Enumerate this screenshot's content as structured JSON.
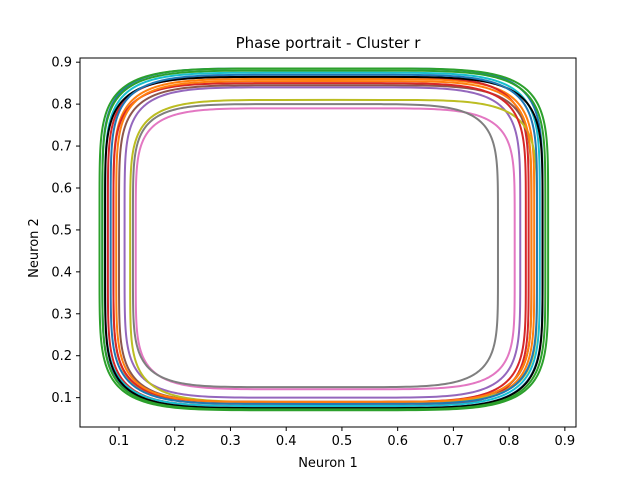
{
  "chart_data": {
    "type": "line",
    "title": "Phase portrait - Cluster r",
    "xlabel": "Neuron 1",
    "ylabel": "Neuron 2",
    "xlim": [
      0.03,
      0.92
    ],
    "ylim": [
      0.03,
      0.91
    ],
    "xticks": [
      "0.1",
      "0.2",
      "0.3",
      "0.4",
      "0.5",
      "0.6",
      "0.7",
      "0.8",
      "0.9"
    ],
    "yticks": [
      "0.1",
      "0.2",
      "0.3",
      "0.4",
      "0.5",
      "0.6",
      "0.7",
      "0.8",
      "0.9"
    ],
    "grid": false,
    "legend": "none",
    "series": [
      {
        "color": "#1f77b4",
        "x_range": [
          0.07,
          0.86
        ],
        "y_range": [
          0.075,
          0.885
        ]
      },
      {
        "color": "#ff7f0e",
        "x_range": [
          0.09,
          0.845
        ],
        "y_range": [
          0.085,
          0.86
        ]
      },
      {
        "color": "#2ca02c",
        "x_range": [
          0.065,
          0.87
        ],
        "y_range": [
          0.07,
          0.885
        ]
      },
      {
        "color": "#d62728",
        "x_range": [
          0.08,
          0.835
        ],
        "y_range": [
          0.08,
          0.865
        ]
      },
      {
        "color": "#9467bd",
        "x_range": [
          0.11,
          0.82
        ],
        "y_range": [
          0.1,
          0.84
        ]
      },
      {
        "color": "#8c564b",
        "x_range": [
          0.1,
          0.84
        ],
        "y_range": [
          0.09,
          0.845
        ]
      },
      {
        "color": "#e377c2",
        "x_range": [
          0.13,
          0.81
        ],
        "y_range": [
          0.12,
          0.79
        ]
      },
      {
        "color": "#7f7f7f",
        "x_range": [
          0.125,
          0.78
        ],
        "y_range": [
          0.125,
          0.8
        ]
      },
      {
        "color": "#bcbd22",
        "x_range": [
          0.12,
          0.85
        ],
        "y_range": [
          0.09,
          0.81
        ]
      },
      {
        "color": "#17becf",
        "x_range": [
          0.075,
          0.855
        ],
        "y_range": [
          0.08,
          0.875
        ]
      },
      {
        "color": "#000000",
        "x_range": [
          0.075,
          0.86
        ],
        "y_range": [
          0.075,
          0.865
        ]
      },
      {
        "color": "#d62728",
        "x_range": [
          0.09,
          0.83
        ],
        "y_range": [
          0.09,
          0.85
        ]
      },
      {
        "color": "#2ca02c",
        "x_range": [
          0.07,
          0.865
        ],
        "y_range": [
          0.072,
          0.88
        ]
      },
      {
        "color": "#ff7f0e",
        "x_range": [
          0.095,
          0.84
        ],
        "y_range": [
          0.09,
          0.855
        ]
      },
      {
        "color": "#1f77b4",
        "x_range": [
          0.085,
          0.85
        ],
        "y_range": [
          0.085,
          0.87
        ]
      }
    ]
  }
}
